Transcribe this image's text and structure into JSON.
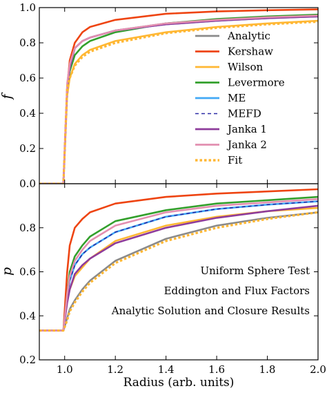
{
  "chart_data": [
    {
      "type": "line",
      "ylabel": "f",
      "xlim": [
        0.9,
        2.0
      ],
      "ylim": [
        0.0,
        1.0
      ],
      "yticks": [
        "0.0",
        "0.2",
        "0.4",
        "0.6",
        "0.8",
        "1.0"
      ],
      "grid": false,
      "legend_position": "right",
      "series": [
        {
          "name": "Analytic",
          "color": "#8a8a8a",
          "dash": "solid",
          "x": [
            0.9,
            0.995,
            1.01,
            1.02,
            1.04,
            1.07,
            1.1,
            1.2,
            1.4,
            1.6,
            1.8,
            2.0
          ],
          "y": [
            0.0,
            0.0,
            0.55,
            0.66,
            0.77,
            0.81,
            0.83,
            0.87,
            0.91,
            0.93,
            0.945,
            0.955
          ]
        },
        {
          "name": "Kershaw",
          "color": "#ee4411",
          "dash": "solid",
          "x": [
            0.9,
            0.995,
            1.01,
            1.02,
            1.04,
            1.07,
            1.1,
            1.2,
            1.4,
            1.6,
            1.8,
            2.0
          ],
          "y": [
            0.0,
            0.0,
            0.55,
            0.7,
            0.8,
            0.86,
            0.89,
            0.93,
            0.965,
            0.978,
            0.985,
            0.99
          ]
        },
        {
          "name": "Wilson",
          "color": "#ffb733",
          "dash": "solid",
          "x": [
            0.9,
            0.995,
            1.01,
            1.02,
            1.04,
            1.07,
            1.1,
            1.2,
            1.4,
            1.6,
            1.8,
            2.0
          ],
          "y": [
            0.0,
            0.0,
            0.5,
            0.6,
            0.68,
            0.73,
            0.76,
            0.81,
            0.86,
            0.89,
            0.91,
            0.925
          ]
        },
        {
          "name": "Levermore",
          "color": "#33a02c",
          "dash": "solid",
          "x": [
            0.9,
            0.995,
            1.01,
            1.02,
            1.04,
            1.07,
            1.1,
            1.2,
            1.4,
            1.6,
            1.8,
            2.0
          ],
          "y": [
            0.0,
            0.0,
            0.55,
            0.64,
            0.73,
            0.78,
            0.81,
            0.86,
            0.91,
            0.935,
            0.95,
            0.96
          ]
        },
        {
          "name": "ME",
          "color": "#41a9f5",
          "dash": "solid",
          "x": [
            0.9,
            0.995,
            1.01,
            1.02,
            1.04,
            1.07,
            1.1,
            1.2,
            1.4,
            1.6,
            1.8,
            2.0
          ],
          "y": [
            0.0,
            0.0,
            0.55,
            0.66,
            0.77,
            0.81,
            0.83,
            0.87,
            0.905,
            0.925,
            0.94,
            0.95
          ]
        },
        {
          "name": "MEFD",
          "color": "#2c2ca6",
          "dash": "dashed",
          "x": [
            0.9,
            0.995,
            1.01,
            1.02,
            1.04,
            1.07,
            1.1,
            1.2,
            1.4,
            1.6,
            1.8,
            2.0
          ],
          "y": [
            0.0,
            0.0,
            0.55,
            0.66,
            0.77,
            0.81,
            0.83,
            0.87,
            0.905,
            0.925,
            0.94,
            0.95
          ]
        },
        {
          "name": "Janka 1",
          "color": "#8e3c9b",
          "dash": "solid",
          "x": [
            0.9,
            0.995,
            1.01,
            1.02,
            1.04,
            1.07,
            1.1,
            1.2,
            1.4,
            1.6,
            1.8,
            2.0
          ],
          "y": [
            0.0,
            0.0,
            0.55,
            0.66,
            0.77,
            0.81,
            0.83,
            0.87,
            0.905,
            0.925,
            0.94,
            0.95
          ]
        },
        {
          "name": "Janka 2",
          "color": "#e38fb0",
          "dash": "solid",
          "x": [
            0.9,
            0.995,
            1.01,
            1.02,
            1.04,
            1.07,
            1.1,
            1.2,
            1.4,
            1.6,
            1.8,
            2.0
          ],
          "y": [
            0.0,
            0.0,
            0.57,
            0.68,
            0.77,
            0.81,
            0.83,
            0.87,
            0.91,
            0.93,
            0.945,
            0.955
          ]
        },
        {
          "name": "Fit",
          "color": "#ffb733",
          "dash": "dotted",
          "x": [
            0.9,
            0.995,
            1.01,
            1.02,
            1.04,
            1.07,
            1.1,
            1.2,
            1.4,
            1.6,
            1.8,
            2.0
          ],
          "y": [
            0.0,
            0.0,
            0.55,
            0.6,
            0.67,
            0.72,
            0.75,
            0.8,
            0.855,
            0.885,
            0.905,
            0.92
          ]
        }
      ]
    },
    {
      "type": "line",
      "xlabel": "Radius (arb. units)",
      "ylabel": "p",
      "xlim": [
        0.9,
        2.0
      ],
      "ylim": [
        0.2,
        1.0
      ],
      "xticks": [
        "1.0",
        "1.2",
        "1.4",
        "1.6",
        "1.8",
        "2.0"
      ],
      "yticks": [
        "0.2",
        "0.4",
        "0.6",
        "0.8"
      ],
      "grid": false,
      "annotations": [
        "Uniform Sphere Test",
        "Eddington and Flux Factors",
        "Analytic Solution and Closure Results"
      ],
      "series": [
        {
          "name": "Analytic",
          "color": "#8a8a8a",
          "dash": "solid",
          "x": [
            0.9,
            0.995,
            1.01,
            1.02,
            1.04,
            1.07,
            1.1,
            1.2,
            1.4,
            1.6,
            1.8,
            2.0
          ],
          "y": [
            0.333,
            0.333,
            0.39,
            0.43,
            0.47,
            0.52,
            0.56,
            0.65,
            0.75,
            0.81,
            0.845,
            0.87
          ]
        },
        {
          "name": "Kershaw",
          "color": "#ee4411",
          "dash": "solid",
          "x": [
            0.9,
            0.995,
            1.01,
            1.02,
            1.04,
            1.07,
            1.1,
            1.2,
            1.4,
            1.6,
            1.8,
            2.0
          ],
          "y": [
            0.333,
            0.333,
            0.6,
            0.72,
            0.8,
            0.84,
            0.87,
            0.91,
            0.94,
            0.955,
            0.965,
            0.975
          ]
        },
        {
          "name": "Wilson",
          "color": "#ffb733",
          "dash": "solid",
          "x": [
            0.9,
            0.995,
            1.01,
            1.02,
            1.04,
            1.07,
            1.1,
            1.2,
            1.4,
            1.6,
            1.8,
            2.0
          ],
          "y": [
            0.333,
            0.333,
            0.48,
            0.52,
            0.58,
            0.62,
            0.66,
            0.74,
            0.81,
            0.85,
            0.875,
            0.89
          ]
        },
        {
          "name": "Levermore",
          "color": "#33a02c",
          "dash": "solid",
          "x": [
            0.9,
            0.995,
            1.01,
            1.02,
            1.04,
            1.07,
            1.1,
            1.2,
            1.4,
            1.6,
            1.8,
            2.0
          ],
          "y": [
            0.333,
            0.333,
            0.5,
            0.6,
            0.67,
            0.72,
            0.76,
            0.83,
            0.88,
            0.91,
            0.925,
            0.94
          ]
        },
        {
          "name": "ME",
          "color": "#41a9f5",
          "dash": "solid",
          "x": [
            0.9,
            0.995,
            1.01,
            1.02,
            1.04,
            1.07,
            1.1,
            1.2,
            1.4,
            1.6,
            1.8,
            2.0
          ],
          "y": [
            0.333,
            0.333,
            0.48,
            0.56,
            0.63,
            0.68,
            0.71,
            0.78,
            0.85,
            0.885,
            0.905,
            0.92
          ]
        },
        {
          "name": "MEFD",
          "color": "#2c2ca6",
          "dash": "dashed",
          "x": [
            0.9,
            0.995,
            1.01,
            1.02,
            1.04,
            1.07,
            1.1,
            1.2,
            1.4,
            1.6,
            1.8,
            2.0
          ],
          "y": [
            0.333,
            0.333,
            0.48,
            0.56,
            0.63,
            0.68,
            0.71,
            0.78,
            0.85,
            0.885,
            0.905,
            0.92
          ]
        },
        {
          "name": "Janka 1",
          "color": "#8e3c9b",
          "dash": "solid",
          "x": [
            0.9,
            0.995,
            1.01,
            1.02,
            1.04,
            1.07,
            1.1,
            1.2,
            1.4,
            1.6,
            1.8,
            2.0
          ],
          "y": [
            0.333,
            0.333,
            0.46,
            0.52,
            0.59,
            0.63,
            0.66,
            0.73,
            0.8,
            0.845,
            0.875,
            0.9
          ]
        },
        {
          "name": "Janka 2",
          "color": "#e38fb0",
          "dash": "solid",
          "x": [
            0.9,
            0.995,
            1.01,
            1.02,
            1.04,
            1.07,
            1.1,
            1.2,
            1.4,
            1.6,
            1.8,
            2.0
          ],
          "y": [
            0.333,
            0.333,
            0.5,
            0.58,
            0.65,
            0.7,
            0.74,
            0.81,
            0.87,
            0.9,
            0.915,
            0.93
          ]
        },
        {
          "name": "Fit",
          "color": "#ffb733",
          "dash": "dotted",
          "x": [
            0.9,
            0.995,
            1.01,
            1.02,
            1.04,
            1.07,
            1.1,
            1.2,
            1.4,
            1.6,
            1.8,
            2.0
          ],
          "y": [
            0.333,
            0.333,
            0.38,
            0.42,
            0.46,
            0.51,
            0.55,
            0.64,
            0.74,
            0.8,
            0.84,
            0.87
          ]
        }
      ]
    }
  ]
}
